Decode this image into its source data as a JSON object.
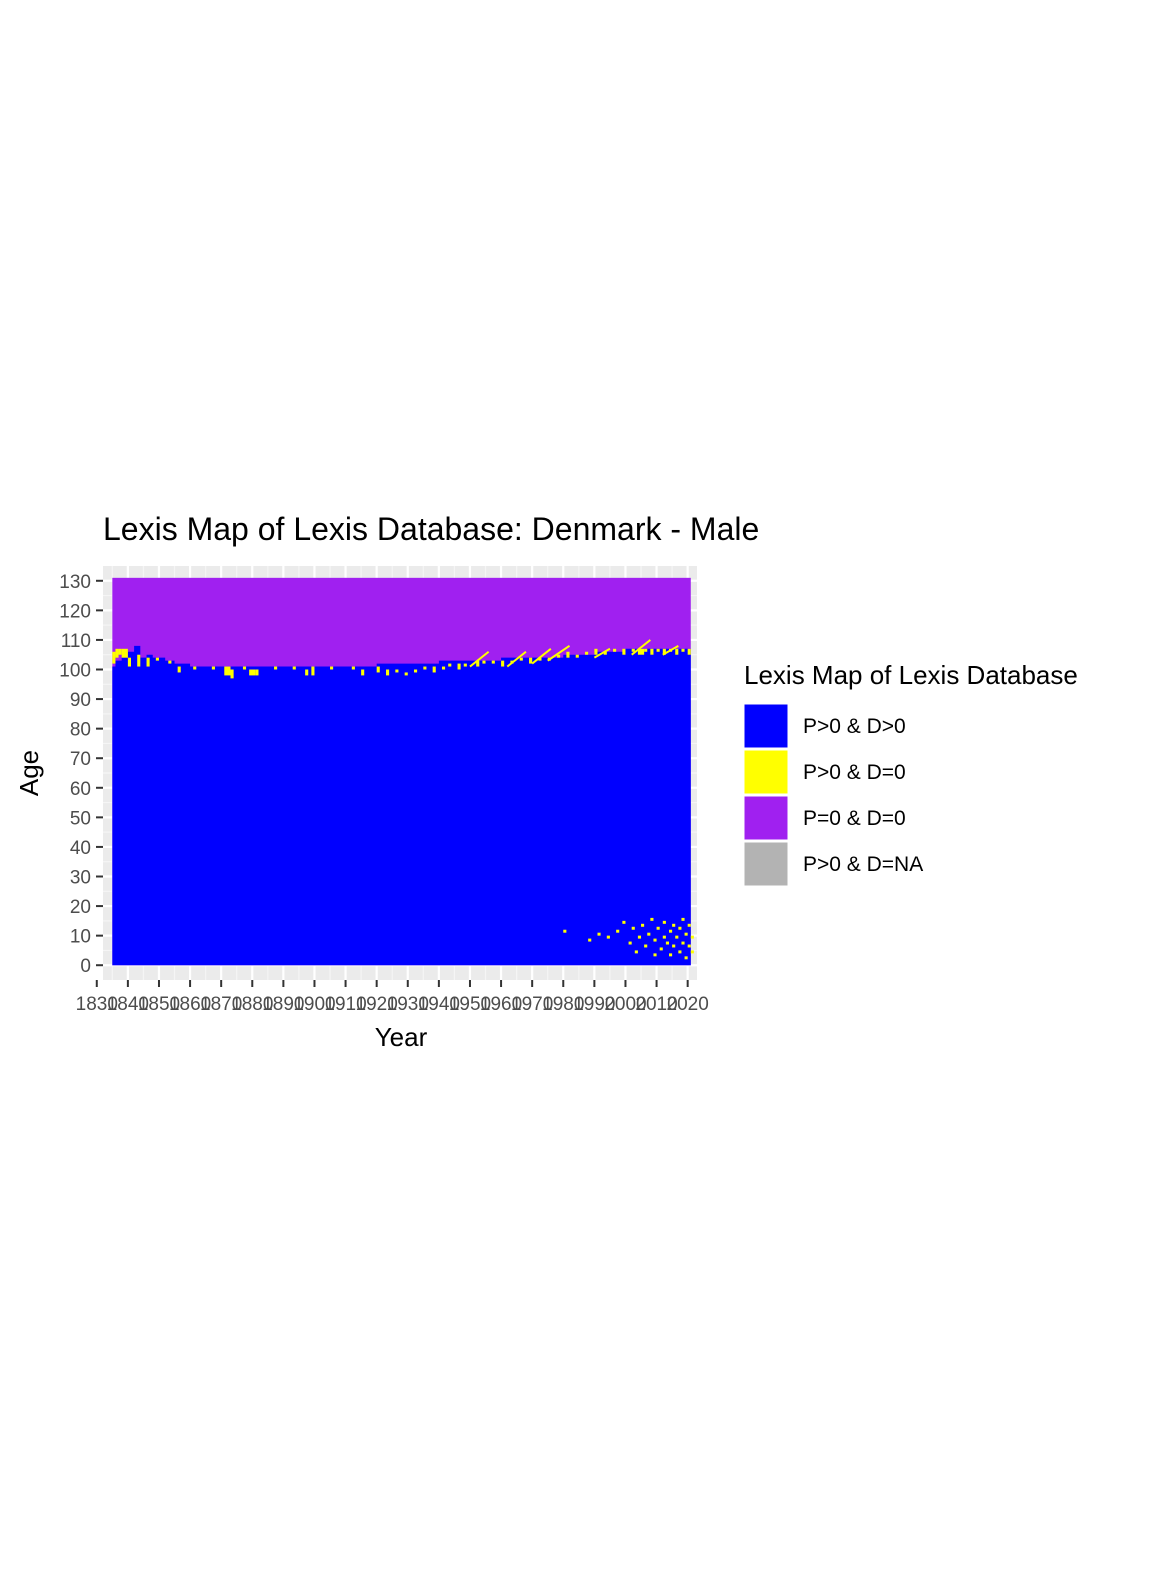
{
  "chart_data": {
    "type": "heatmap",
    "title": "Lexis Map of Lexis Database: Denmark - Male",
    "xlabel": "Year",
    "ylabel": "Age",
    "xlim": [
      1832,
      2023
    ],
    "ylim": [
      -5,
      135
    ],
    "data_extent": {
      "year_start": 1835,
      "year_end": 2021,
      "age_min": 0,
      "age_max": 131
    },
    "x_ticks": [
      "1830",
      "1840",
      "1850",
      "1860",
      "1870",
      "1880",
      "1890",
      "1900",
      "1910",
      "1920",
      "1930",
      "1940",
      "1950",
      "1960",
      "1970",
      "1980",
      "1990",
      "2000",
      "2010",
      "2020"
    ],
    "y_ticks": [
      "0",
      "10",
      "20",
      "30",
      "40",
      "50",
      "60",
      "70",
      "80",
      "90",
      "100",
      "110",
      "120",
      "130"
    ],
    "grid": true,
    "legend": {
      "title": "Lexis Map of Lexis Database",
      "position": "right",
      "entries": [
        {
          "label": "P>0 & D>0",
          "color": "#0000ff"
        },
        {
          "label": "P>0 & D=0",
          "color": "#ffff00"
        },
        {
          "label": "P=0 & D=0",
          "color": "#a020f0"
        },
        {
          "label": "P>0 & D=NA",
          "color": "#b3b3b3"
        }
      ]
    },
    "boundary_upper_age_by_year": [
      [
        1835,
        101
      ],
      [
        1836,
        103
      ],
      [
        1838,
        104
      ],
      [
        1840,
        106
      ],
      [
        1842,
        108
      ],
      [
        1844,
        104
      ],
      [
        1846,
        105
      ],
      [
        1848,
        104
      ],
      [
        1850,
        104
      ],
      [
        1852,
        103
      ],
      [
        1855,
        102
      ],
      [
        1860,
        101
      ],
      [
        1870,
        101
      ],
      [
        1880,
        101
      ],
      [
        1890,
        101
      ],
      [
        1900,
        101
      ],
      [
        1910,
        101
      ],
      [
        1920,
        102
      ],
      [
        1930,
        102
      ],
      [
        1940,
        103
      ],
      [
        1950,
        103
      ],
      [
        1960,
        104
      ],
      [
        1970,
        104
      ],
      [
        1980,
        105
      ],
      [
        1990,
        106
      ],
      [
        2000,
        107
      ],
      [
        2010,
        107
      ],
      [
        2021,
        107
      ]
    ],
    "yellow_cells": [
      [
        1835,
        102,
        1,
        4
      ],
      [
        1836,
        104,
        1,
        3
      ],
      [
        1837,
        105,
        1,
        2
      ],
      [
        1838,
        104,
        2,
        3
      ],
      [
        1840,
        101,
        1,
        3
      ],
      [
        1843,
        101,
        1,
        4
      ],
      [
        1846,
        101,
        1,
        3
      ],
      [
        1849,
        103,
        1,
        1
      ],
      [
        1853,
        102,
        1,
        1
      ],
      [
        1856,
        99,
        1,
        2
      ],
      [
        1861,
        100,
        1,
        1
      ],
      [
        1867,
        100,
        1,
        1
      ],
      [
        1871,
        98,
        2,
        3
      ],
      [
        1873,
        97,
        1,
        3
      ],
      [
        1877,
        100,
        1,
        1
      ],
      [
        1879,
        98,
        2,
        2
      ],
      [
        1881,
        98,
        1,
        2
      ],
      [
        1887,
        100,
        1,
        1
      ],
      [
        1893,
        100,
        1,
        1
      ],
      [
        1897,
        98,
        1,
        2
      ],
      [
        1899,
        98,
        1,
        3
      ],
      [
        1905,
        100,
        1,
        1
      ],
      [
        1912,
        100,
        1,
        1
      ],
      [
        1915,
        98,
        1,
        2
      ],
      [
        1920,
        99,
        1,
        2
      ],
      [
        1923,
        98,
        1,
        2
      ],
      [
        1926,
        99,
        1,
        1
      ],
      [
        1929,
        98,
        1,
        1
      ],
      [
        1932,
        99,
        1,
        1
      ],
      [
        1935,
        100,
        1,
        1
      ],
      [
        1938,
        99,
        1,
        2
      ],
      [
        1941,
        100,
        1,
        1
      ],
      [
        1943,
        101,
        1,
        1
      ],
      [
        1946,
        100,
        1,
        2
      ],
      [
        1948,
        101,
        1,
        1
      ],
      [
        1952,
        101,
        1,
        2
      ],
      [
        1954,
        102,
        1,
        1
      ],
      [
        1957,
        102,
        1,
        1
      ],
      [
        1960,
        101,
        1,
        2
      ],
      [
        1963,
        102,
        1,
        1
      ],
      [
        1966,
        103,
        1,
        1
      ],
      [
        1969,
        102,
        1,
        2
      ],
      [
        1972,
        103,
        1,
        1
      ],
      [
        1975,
        103,
        1,
        1
      ],
      [
        1978,
        104,
        1,
        1
      ],
      [
        1981,
        104,
        1,
        2
      ],
      [
        1984,
        104,
        1,
        1
      ],
      [
        1987,
        105,
        1,
        1
      ],
      [
        1990,
        105,
        1,
        2
      ],
      [
        1993,
        105,
        1,
        1
      ],
      [
        1996,
        106,
        1,
        1
      ],
      [
        1999,
        105,
        1,
        2
      ],
      [
        2002,
        106,
        1,
        1
      ],
      [
        2004,
        105,
        2,
        2
      ],
      [
        2006,
        106,
        1,
        1
      ],
      [
        2008,
        105,
        1,
        2
      ],
      [
        2010,
        106,
        1,
        1
      ],
      [
        2012,
        105,
        1,
        2
      ],
      [
        2014,
        106,
        1,
        1
      ],
      [
        2016,
        105,
        1,
        2
      ],
      [
        2018,
        106,
        1,
        1
      ],
      [
        2020,
        105,
        1,
        2
      ],
      [
        1980,
        11,
        1,
        1
      ],
      [
        1988,
        8,
        1,
        1
      ],
      [
        1991,
        10,
        1,
        1
      ],
      [
        1994,
        9,
        1,
        1
      ],
      [
        1997,
        11,
        1,
        1
      ],
      [
        1999,
        14,
        1,
        1
      ],
      [
        2001,
        7,
        1,
        1
      ],
      [
        2002,
        12,
        1,
        1
      ],
      [
        2003,
        4,
        1,
        1
      ],
      [
        2004,
        9,
        1,
        1
      ],
      [
        2005,
        13,
        1,
        1
      ],
      [
        2006,
        6,
        1,
        1
      ],
      [
        2007,
        10,
        1,
        1
      ],
      [
        2008,
        15,
        1,
        1
      ],
      [
        2009,
        3,
        1,
        1
      ],
      [
        2009,
        8,
        1,
        1
      ],
      [
        2010,
        12,
        1,
        1
      ],
      [
        2011,
        5,
        1,
        1
      ],
      [
        2012,
        9,
        1,
        1
      ],
      [
        2012,
        14,
        1,
        1
      ],
      [
        2013,
        7,
        1,
        1
      ],
      [
        2014,
        11,
        1,
        1
      ],
      [
        2014,
        3,
        1,
        1
      ],
      [
        2015,
        6,
        1,
        1
      ],
      [
        2015,
        13,
        1,
        1
      ],
      [
        2016,
        9,
        1,
        1
      ],
      [
        2017,
        4,
        1,
        1
      ],
      [
        2017,
        12,
        1,
        1
      ],
      [
        2018,
        7,
        1,
        1
      ],
      [
        2018,
        15,
        1,
        1
      ],
      [
        2019,
        10,
        1,
        1
      ],
      [
        2019,
        2,
        1,
        1
      ],
      [
        2020,
        6,
        1,
        1
      ],
      [
        2020,
        13,
        1,
        1
      ],
      [
        2021,
        9,
        1,
        1
      ],
      [
        2021,
        4,
        1,
        1
      ]
    ],
    "yellow_diagonals": [
      [
        1950,
        101,
        1956,
        106
      ],
      [
        1962,
        101,
        1968,
        106
      ],
      [
        1970,
        102,
        1976,
        107
      ],
      [
        1975,
        103,
        1982,
        108
      ],
      [
        1990,
        104,
        1995,
        107
      ],
      [
        2002,
        105,
        2008,
        110
      ],
      [
        2012,
        105,
        2017,
        108
      ]
    ]
  }
}
